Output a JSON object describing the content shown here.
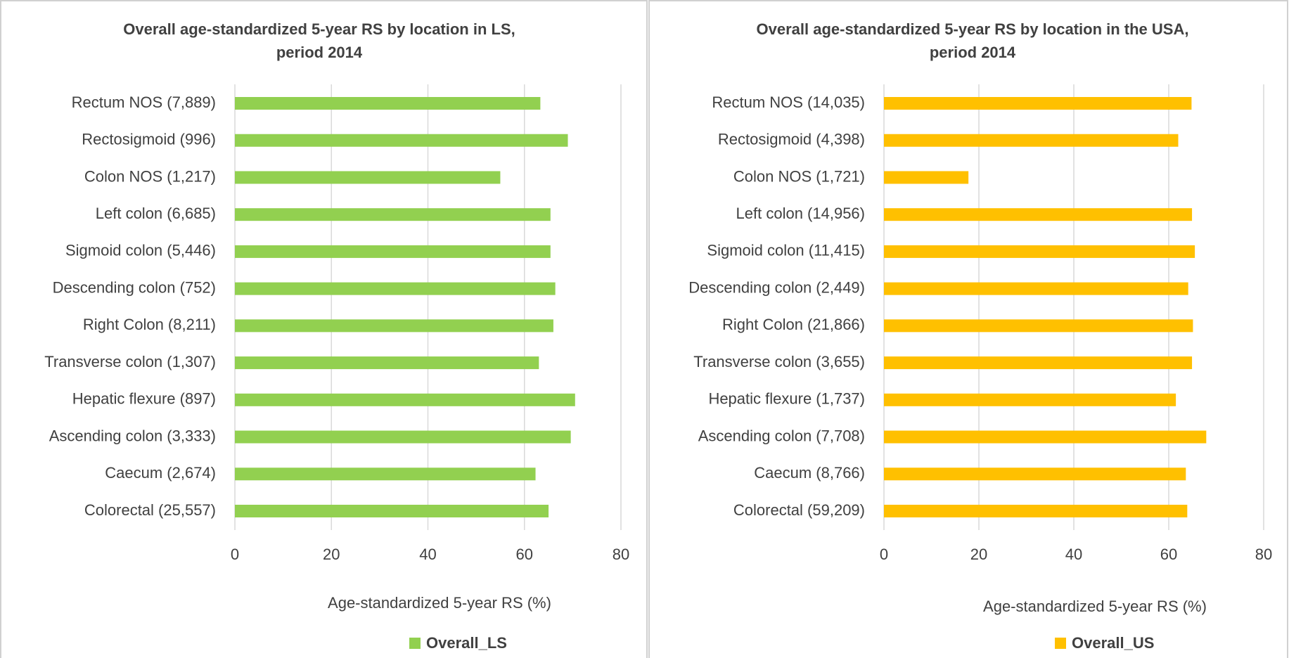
{
  "chart_data": [
    {
      "type": "bar",
      "orientation": "horizontal",
      "title": [
        "Overall age-standardized 5-year RS by location in LS,",
        "period 2014"
      ],
      "categories": [
        "Rectum NOS (7,889)",
        "Rectosigmoid (996)",
        "Colon NOS (1,217)",
        "Left colon (6,685)",
        "Sigmoid colon (5,446)",
        "Descending colon (752)",
        "Right Colon (8,211)",
        "Transverse colon (1,307)",
        "Hepatic flexure (897)",
        "Ascending colon (3,333)",
        "Caecum (2,674)",
        "Colorectal (25,557)"
      ],
      "series": [
        {
          "name": "Overall_LS",
          "color": "#92d050",
          "values": [
            63.3,
            69,
            55,
            65.4,
            65.4,
            66.4,
            66,
            63,
            70.5,
            69.6,
            62.3,
            65
          ]
        }
      ],
      "xlabel": "Age-standardized 5-year RS (%)",
      "xlim": [
        0,
        80
      ],
      "xticks": [
        0,
        20,
        40,
        60,
        80
      ],
      "grid": true,
      "legend": "bottom"
    },
    {
      "type": "bar",
      "orientation": "horizontal",
      "title": [
        "Overall age-standardized 5-year RS  by location in the USA,",
        "period 2014"
      ],
      "categories": [
        "Rectum NOS (14,035)",
        "Rectosigmoid (4,398)",
        "Colon NOS (1,721)",
        "Left colon (14,956)",
        "Sigmoid colon (11,415)",
        "Descending colon (2,449)",
        "Right Colon (21,866)",
        "Transverse colon (3,655)",
        "Hepatic flexure (1,737)",
        "Ascending colon (7,708)",
        "Caecum (8,766)",
        "Colorectal (59,209)"
      ],
      "series": [
        {
          "name": "Overall_US",
          "color": "#ffc000",
          "values": [
            64.8,
            62,
            17.8,
            64.9,
            65.5,
            64.1,
            65.1,
            64.9,
            61.5,
            67.9,
            63.6,
            63.9
          ]
        }
      ],
      "xlabel": "Age-standardized 5-year RS (%)",
      "xlim": [
        0,
        80
      ],
      "xticks": [
        0,
        20,
        40,
        60,
        80
      ],
      "grid": true,
      "legend": "bottom"
    }
  ]
}
